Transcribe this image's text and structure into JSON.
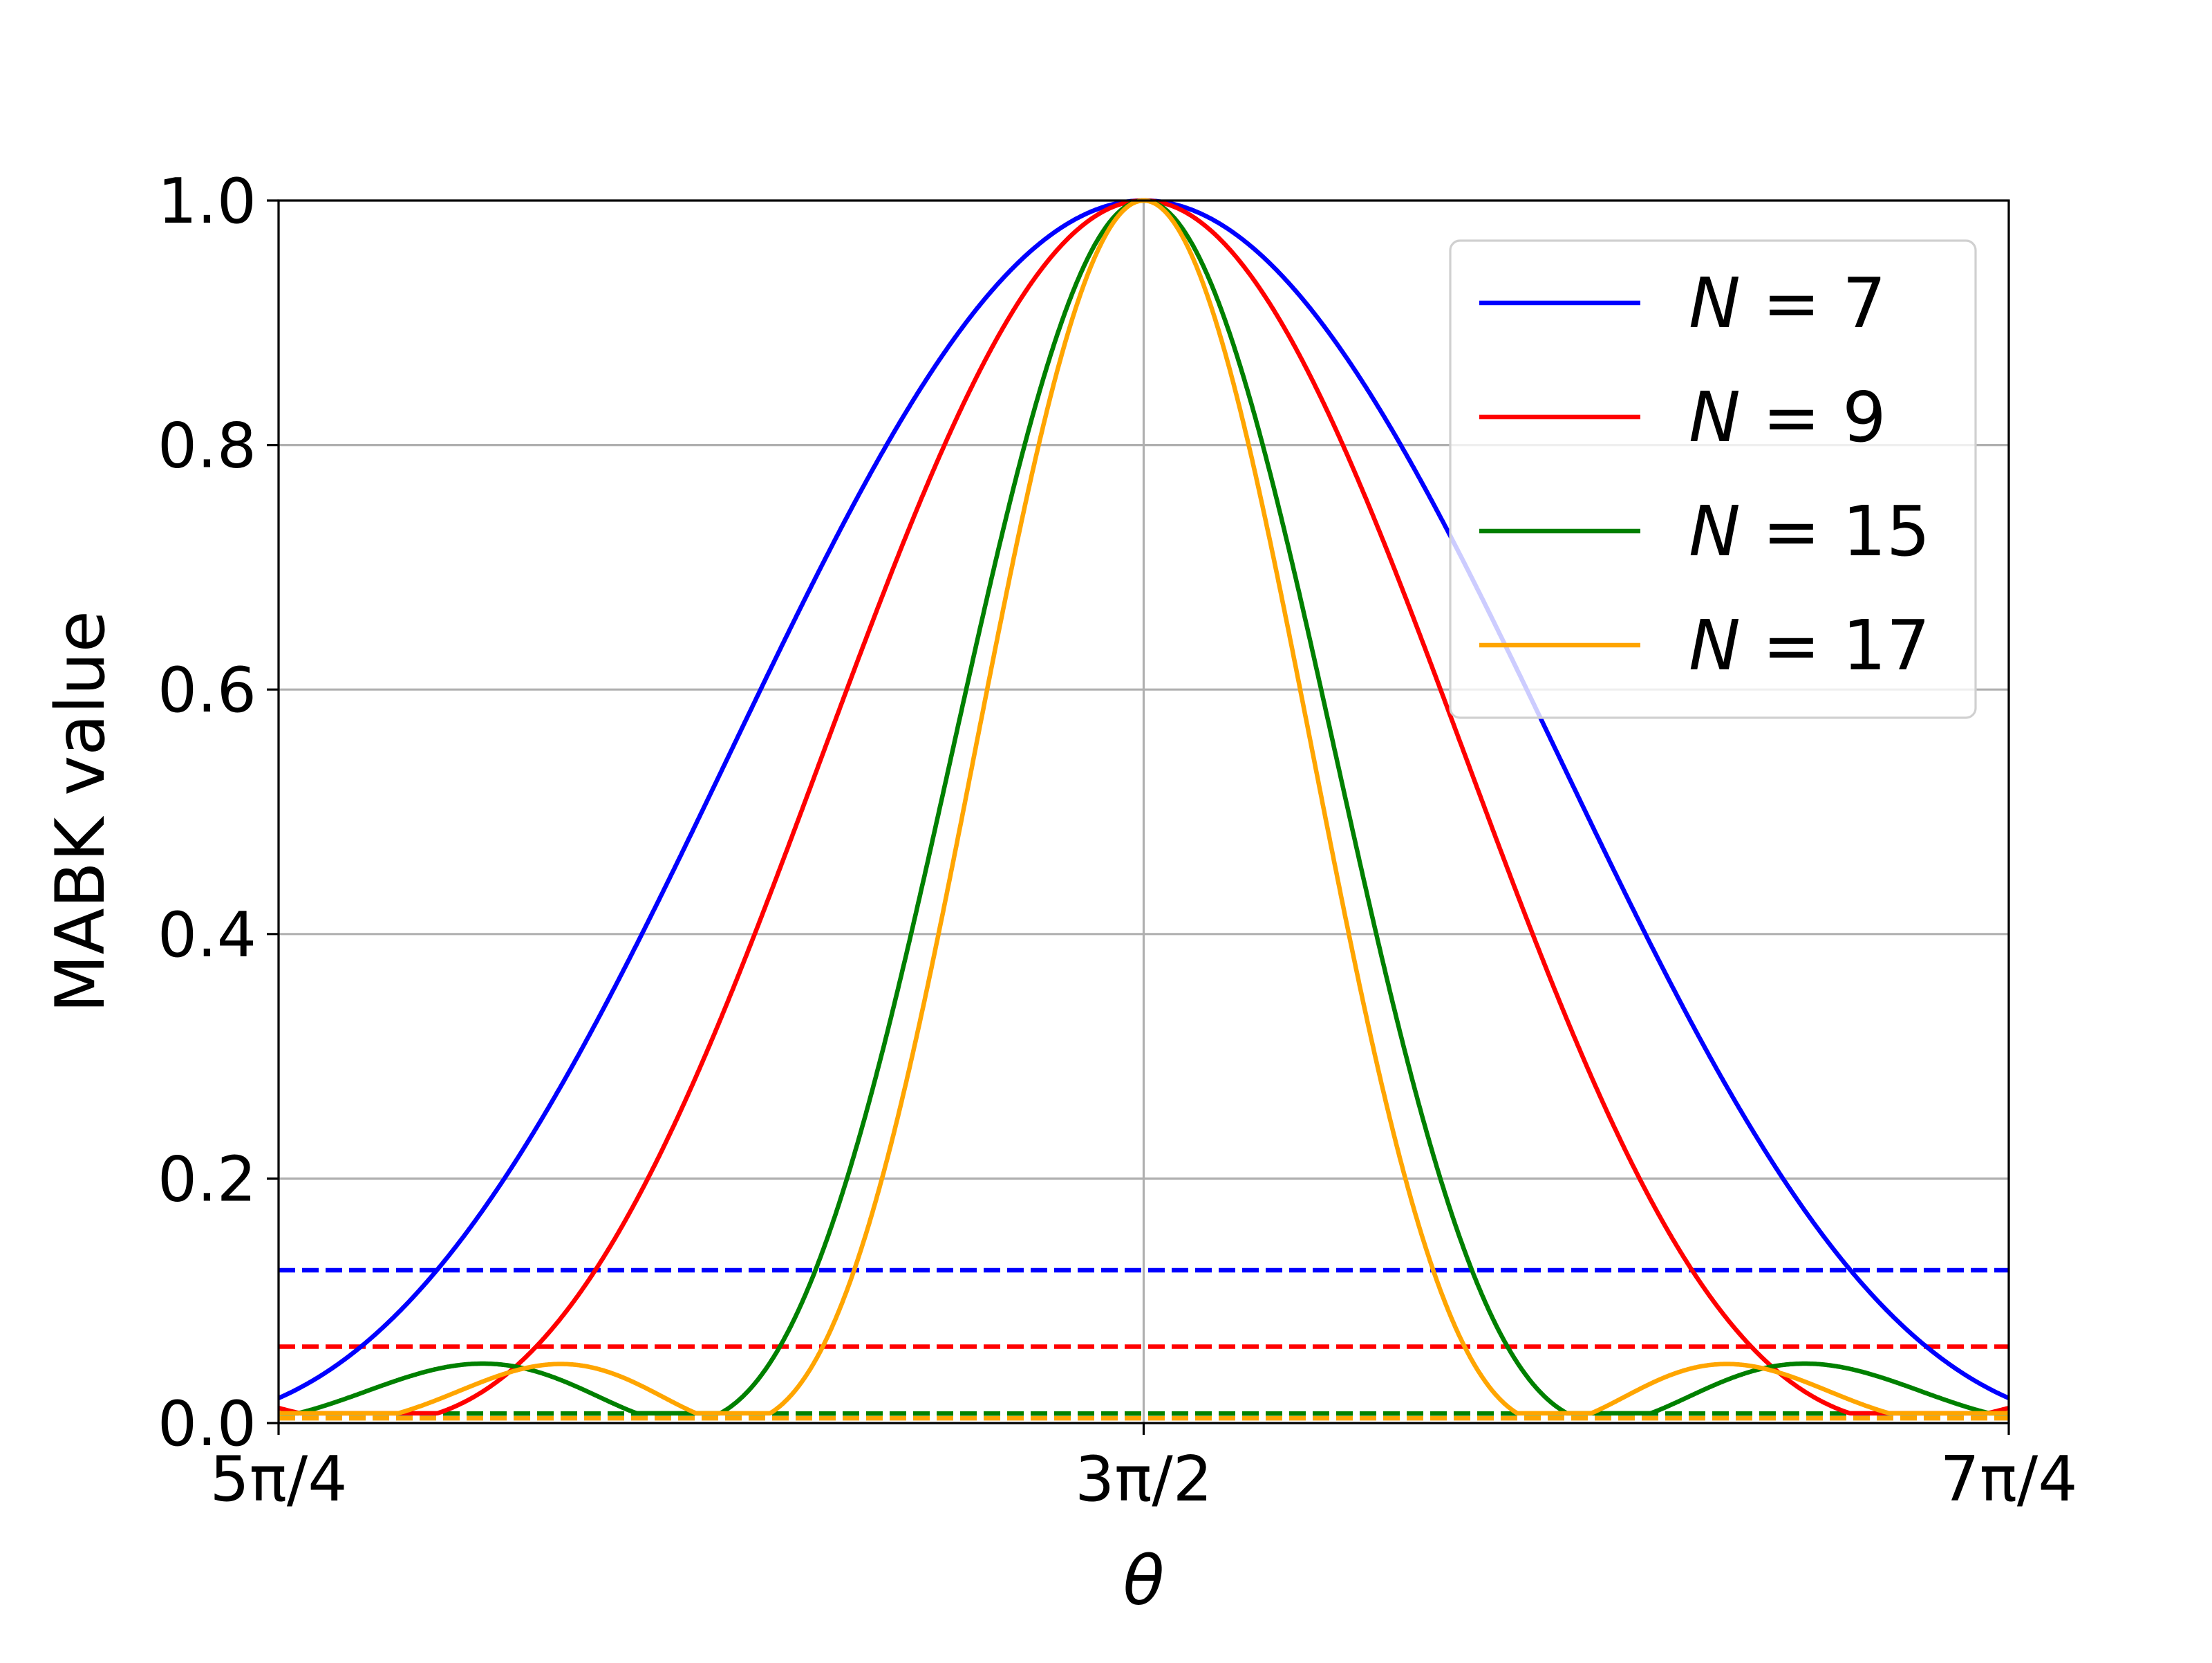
{
  "chart_data": {
    "type": "line",
    "xlabel": "θ",
    "ylabel": "MABK value",
    "xlim": [
      "5π/4",
      "7π/4"
    ],
    "xlim_radians": [
      3.92699,
      5.49779
    ],
    "ylim": [
      0.0,
      1.0
    ],
    "grid": true,
    "legend_position": "top-right",
    "x_ticks": [
      {
        "label": "5π/4",
        "value": 3.92699
      },
      {
        "label": "3π/2",
        "value": 4.71239
      },
      {
        "label": "7π/4",
        "value": 5.49779
      }
    ],
    "y_ticks": [
      {
        "label": "0.0",
        "value": 0.0
      },
      {
        "label": "0.2",
        "value": 0.2
      },
      {
        "label": "0.4",
        "value": 0.4
      },
      {
        "label": "0.6",
        "value": 0.6
      },
      {
        "label": "0.8",
        "value": 0.8
      },
      {
        "label": "1.0",
        "value": 1.0
      }
    ],
    "series": [
      {
        "name": "N = 7",
        "name_var": "N",
        "name_val": "7",
        "color": "#0000ff",
        "N": 7,
        "style": "solid"
      },
      {
        "name": "N = 9",
        "name_var": "N",
        "name_val": "9",
        "color": "#ff0000",
        "N": 9,
        "style": "solid"
      },
      {
        "name": "N = 15",
        "name_var": "N",
        "name_val": "15",
        "color": "#008000",
        "N": 15,
        "style": "solid"
      },
      {
        "name": "N = 17",
        "name_var": "N",
        "name_val": "17",
        "color": "#ffa500",
        "N": 17,
        "style": "solid"
      }
    ],
    "thresholds": [
      {
        "series": "N = 7",
        "value": 0.125,
        "color": "#0000ff",
        "style": "dashed"
      },
      {
        "series": "N = 9",
        "value": 0.0625,
        "color": "#ff0000",
        "style": "dashed"
      },
      {
        "series": "N = 15",
        "value": 0.0078,
        "color": "#008000",
        "style": "dashed"
      },
      {
        "series": "N = 17",
        "value": 0.0039,
        "color": "#ffa500",
        "style": "dashed"
      }
    ]
  }
}
